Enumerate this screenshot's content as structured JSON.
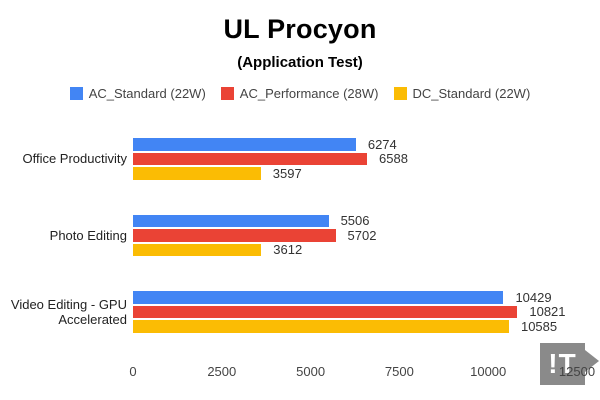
{
  "chart_data": {
    "type": "bar",
    "orientation": "horizontal",
    "title": "UL Procyon",
    "subtitle": "(Application Test)",
    "categories": [
      "Office Productivity",
      "Photo Editing",
      "Video Editing - GPU Accelerated"
    ],
    "series": [
      {
        "name": "AC_Standard (22W)",
        "color": "#4285F4",
        "values": [
          6274,
          5506,
          10429
        ]
      },
      {
        "name": "AC_Performance (28W)",
        "color": "#EA4335",
        "values": [
          6588,
          5702,
          10821
        ]
      },
      {
        "name": "DC_Standard (22W)",
        "color": "#FBBC04",
        "values": [
          3597,
          3612,
          10585
        ]
      }
    ],
    "xlim": [
      0,
      12500
    ],
    "x_ticks": [
      "0",
      "2500",
      "5000",
      "7500",
      "10000",
      "12500"
    ],
    "grid": false,
    "legend_position": "top",
    "value_labels": true,
    "background": "#ffffff"
  },
  "watermark": {
    "text": "!T"
  }
}
